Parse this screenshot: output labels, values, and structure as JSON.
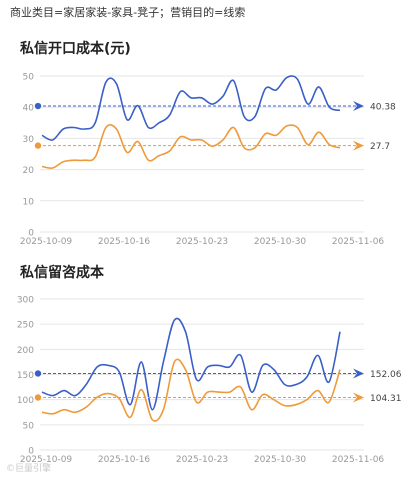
{
  "header": {
    "filter_text": "商业类目=家居家装-家具-凳子；营销目的=线索"
  },
  "watermark": "©巨量引擎",
  "colors": {
    "blue": "#3b5fc8",
    "orange": "#ef9a3a",
    "grid": "#e6e6e6",
    "axis_text": "#999999"
  },
  "chart_data": [
    {
      "type": "line",
      "title": "私信开口成本(元)",
      "x_ticks": [
        "2025-10-09",
        "2025-10-16",
        "2025-10-23",
        "2025-10-30",
        "2025-11-06"
      ],
      "ylim": [
        0,
        50
      ],
      "y_ticks": [
        0,
        10,
        20,
        30,
        40,
        50
      ],
      "grid": true,
      "series": [
        {
          "color": "#3b5fc8",
          "values": [
            31,
            29.5,
            33,
            33.5,
            33,
            35,
            48,
            47.5,
            36,
            40.5,
            33.5,
            35,
            37.5,
            45,
            43,
            43,
            41,
            43.5,
            48.5,
            37,
            37,
            46,
            45.5,
            49.5,
            49,
            41,
            46.5,
            40,
            39
          ],
          "reference": 40.38,
          "reference_label": "40.38"
        },
        {
          "color": "#ef9a3a",
          "values": [
            21,
            20.5,
            22.5,
            23,
            23,
            24,
            33.5,
            33,
            25.5,
            29,
            23,
            24.5,
            26,
            30.5,
            29.5,
            29.5,
            27.5,
            29.5,
            33.5,
            27,
            27,
            31.5,
            31,
            34,
            33.5,
            28,
            32,
            28,
            27
          ],
          "reference": 27.7,
          "reference_label": "27.7"
        }
      ]
    },
    {
      "type": "line",
      "title": "私信留咨成本",
      "x_ticks": [
        "2025-10-09",
        "2025-10-16",
        "2025-10-23",
        "2025-10-30",
        "2025-11-06"
      ],
      "ylim": [
        0,
        300
      ],
      "y_ticks": [
        0,
        50,
        100,
        150,
        200,
        250,
        300
      ],
      "grid": true,
      "series": [
        {
          "color": "#3b5fc8",
          "values": [
            115,
            108,
            118,
            108,
            130,
            165,
            168,
            155,
            90,
            175,
            80,
            175,
            258,
            235,
            140,
            165,
            168,
            165,
            188,
            115,
            168,
            160,
            130,
            130,
            145,
            188,
            135,
            235
          ],
          "reference": 152.06,
          "reference_label": "152.06"
        },
        {
          "color": "#ef9a3a",
          "values": [
            75,
            72,
            80,
            75,
            85,
            105,
            112,
            102,
            65,
            120,
            60,
            80,
            175,
            160,
            95,
            115,
            115,
            115,
            125,
            80,
            110,
            100,
            88,
            90,
            100,
            118,
            95,
            160
          ],
          "reference": 104.31,
          "reference_label": "104.31"
        }
      ]
    }
  ]
}
